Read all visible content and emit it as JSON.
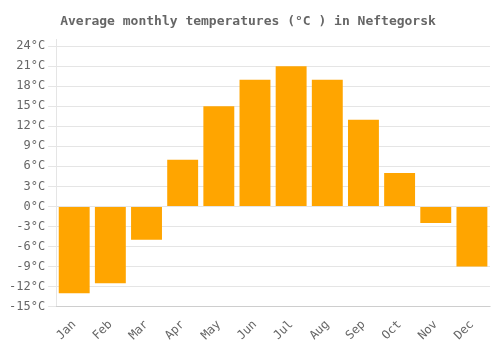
{
  "chart_data": {
    "type": "bar",
    "title": "Average monthly temperatures (°C ) in Neftegorsk",
    "categories": [
      "Jan",
      "Feb",
      "Mar",
      "Apr",
      "May",
      "Jun",
      "Jul",
      "Aug",
      "Sep",
      "Oct",
      "Nov",
      "Dec"
    ],
    "values": [
      -13,
      -11.5,
      -5,
      7,
      15,
      19,
      21,
      19,
      13,
      5,
      -2.5,
      -9
    ],
    "color": "#FFA500",
    "ylim": [
      -15,
      25
    ],
    "yticks": [
      {
        "value": -15,
        "label": "-15°C"
      },
      {
        "value": -12,
        "label": "-12°C"
      },
      {
        "value": -9,
        "label": "-9°C"
      },
      {
        "value": -6,
        "label": "-6°C"
      },
      {
        "value": -3,
        "label": "-3°C"
      },
      {
        "value": 0,
        "label": "0°C"
      },
      {
        "value": 3,
        "label": "3°C"
      },
      {
        "value": 6,
        "label": "6°C"
      },
      {
        "value": 9,
        "label": "9°C"
      },
      {
        "value": 12,
        "label": "12°C"
      },
      {
        "value": 15,
        "label": "15°C"
      },
      {
        "value": 18,
        "label": "18°C"
      },
      {
        "value": 21,
        "label": "21°C"
      },
      {
        "value": 24,
        "label": "24°C"
      }
    ],
    "grid": true
  }
}
